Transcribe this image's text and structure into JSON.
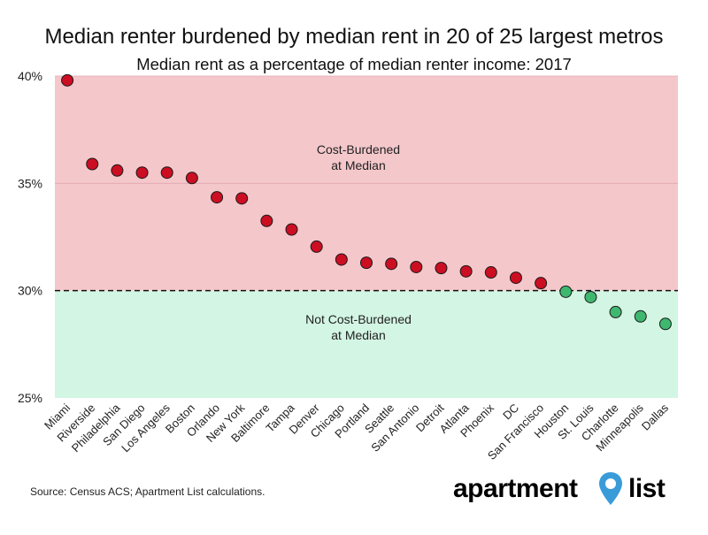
{
  "title": "Median renter burdened by median rent in 20 of 25 largest metros",
  "subtitle": "Median rent as a percentage of median renter income: 2017",
  "source": "Source: Census ACS; Apartment List calculations.",
  "logo": {
    "left": "apartment",
    "right": "list"
  },
  "chart_data": {
    "type": "scatter",
    "categories": [
      "Miami",
      "Riverside",
      "Philadelphia",
      "San Diego",
      "Los Angeles",
      "Boston",
      "Orlando",
      "New York",
      "Baltimore",
      "Tampa",
      "Denver",
      "Chicago",
      "Portland",
      "Seattle",
      "San Antonio",
      "Detroit",
      "Atlanta",
      "Phoenix",
      "DC",
      "San Francisco",
      "Houston",
      "St. Louis",
      "Charlotte",
      "Minneapolis",
      "Dallas"
    ],
    "values": [
      39.8,
      35.9,
      35.6,
      35.5,
      35.5,
      35.25,
      34.35,
      34.3,
      33.25,
      32.85,
      32.05,
      31.45,
      31.3,
      31.25,
      31.1,
      31.05,
      30.9,
      30.85,
      30.6,
      30.35,
      29.95,
      29.7,
      29.0,
      28.8,
      28.45
    ],
    "ylim": [
      25,
      40
    ],
    "yticks": [
      "25%",
      "30%",
      "35%",
      "40%"
    ],
    "threshold": 30,
    "regions": {
      "above": "Cost-Burdened\nat Median",
      "below": "Not Cost-Burdened\nat Median"
    },
    "colors": {
      "above_fill": "#f4c7cb",
      "below_fill": "#d3f5e3",
      "burdened_point": "#cc0e22",
      "not_burdened_point": "#3fb86f"
    },
    "grid": true
  }
}
